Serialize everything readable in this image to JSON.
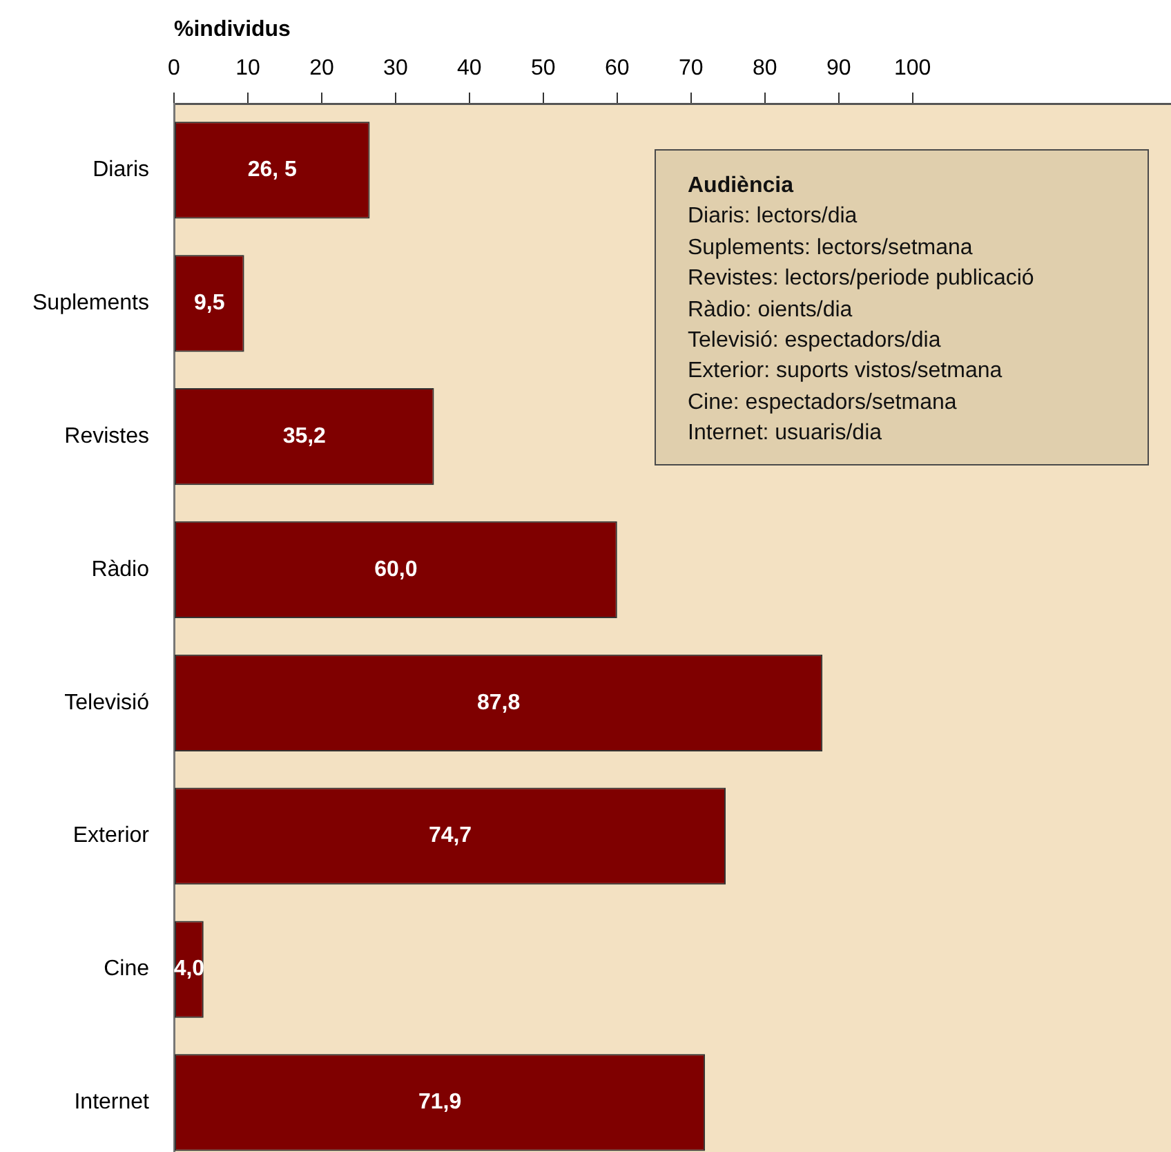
{
  "chart_data": {
    "type": "bar",
    "orientation": "horizontal",
    "xlabel": "%individus",
    "categories": [
      "Diaris",
      "Suplements",
      "Revistes",
      "Ràdio",
      "Televisió",
      "Exterior",
      "Cine",
      "Internet"
    ],
    "values": [
      26.5,
      9.5,
      35.2,
      60.0,
      87.8,
      74.7,
      4.0,
      71.9
    ],
    "value_labels": [
      "26, 5",
      "9,5",
      "35,2",
      "60,0",
      "87,8",
      "74,7",
      "4,0",
      "71,9"
    ],
    "color": "#7f0000",
    "xlim": [
      0,
      135
    ],
    "xticks": [
      0,
      10,
      20,
      30,
      40,
      50,
      60,
      70,
      80,
      90,
      100
    ],
    "annotations": [
      "Audiència",
      "Diaris: lectors/dia",
      "Suplements: lectors/setmana",
      "Revistes: lectors/periode publicació",
      "Ràdio: oients/dia",
      "Televisió: espectadors/dia",
      "Exterior: suports vistos/setmana",
      "Cine: espectadors/setmana",
      "Internet: usuaris/dia"
    ]
  }
}
